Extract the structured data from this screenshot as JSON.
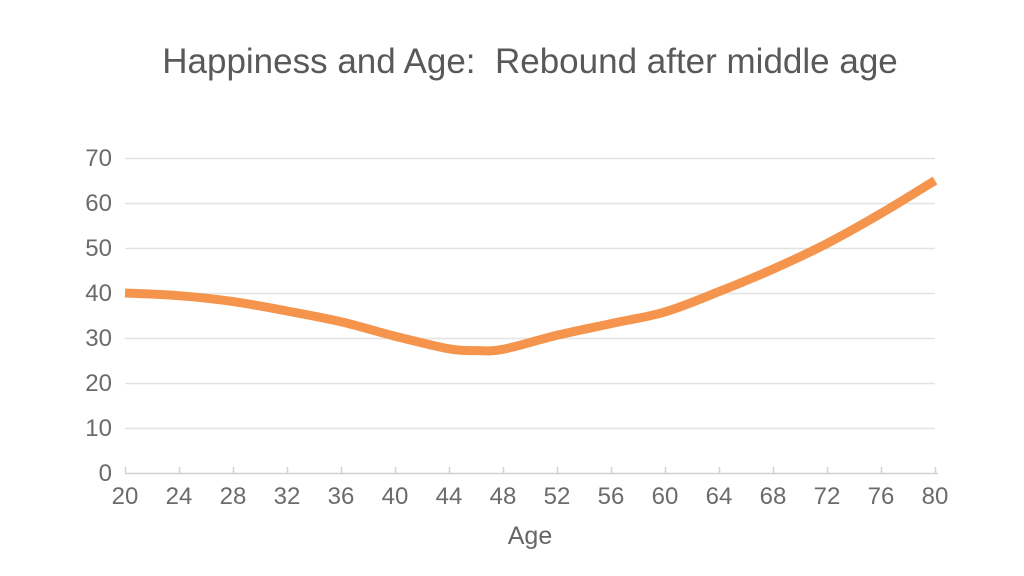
{
  "page": {
    "background": "#ffffff"
  },
  "chart_data": {
    "type": "line",
    "title": "Happiness and Age:  Rebound after middle age",
    "xlabel": "Age",
    "ylabel": "",
    "xlim": [
      20,
      80
    ],
    "ylim": [
      0,
      70
    ],
    "xticks": [
      20,
      24,
      28,
      32,
      36,
      40,
      44,
      48,
      52,
      56,
      60,
      64,
      68,
      72,
      76,
      80
    ],
    "yticks": [
      0,
      10,
      20,
      30,
      40,
      50,
      60,
      70
    ],
    "grid": "horizontal-only",
    "legend": "none",
    "series": [
      {
        "name": "Happiness",
        "color": "#F5944D",
        "line_width": 9,
        "x": [
          20,
          24,
          28,
          32,
          36,
          40,
          44,
          46,
          48,
          52,
          56,
          60,
          64,
          68,
          72,
          76,
          80
        ],
        "y": [
          40.0,
          39.4,
          38.1,
          36.0,
          33.6,
          30.4,
          27.6,
          27.2,
          27.5,
          30.6,
          33.2,
          35.8,
          40.3,
          45.3,
          51.0,
          57.7,
          65.0
        ]
      }
    ],
    "annotations": {
      "start_value": 40,
      "minimum": {
        "age": 46,
        "value": 27
      },
      "end_value": 65
    },
    "colors": {
      "title_color": "#595959",
      "tick_label_color": "#6b6b6b",
      "grid_color": "#e3e3e3",
      "axis_line_color": "#d2d2d2"
    }
  }
}
